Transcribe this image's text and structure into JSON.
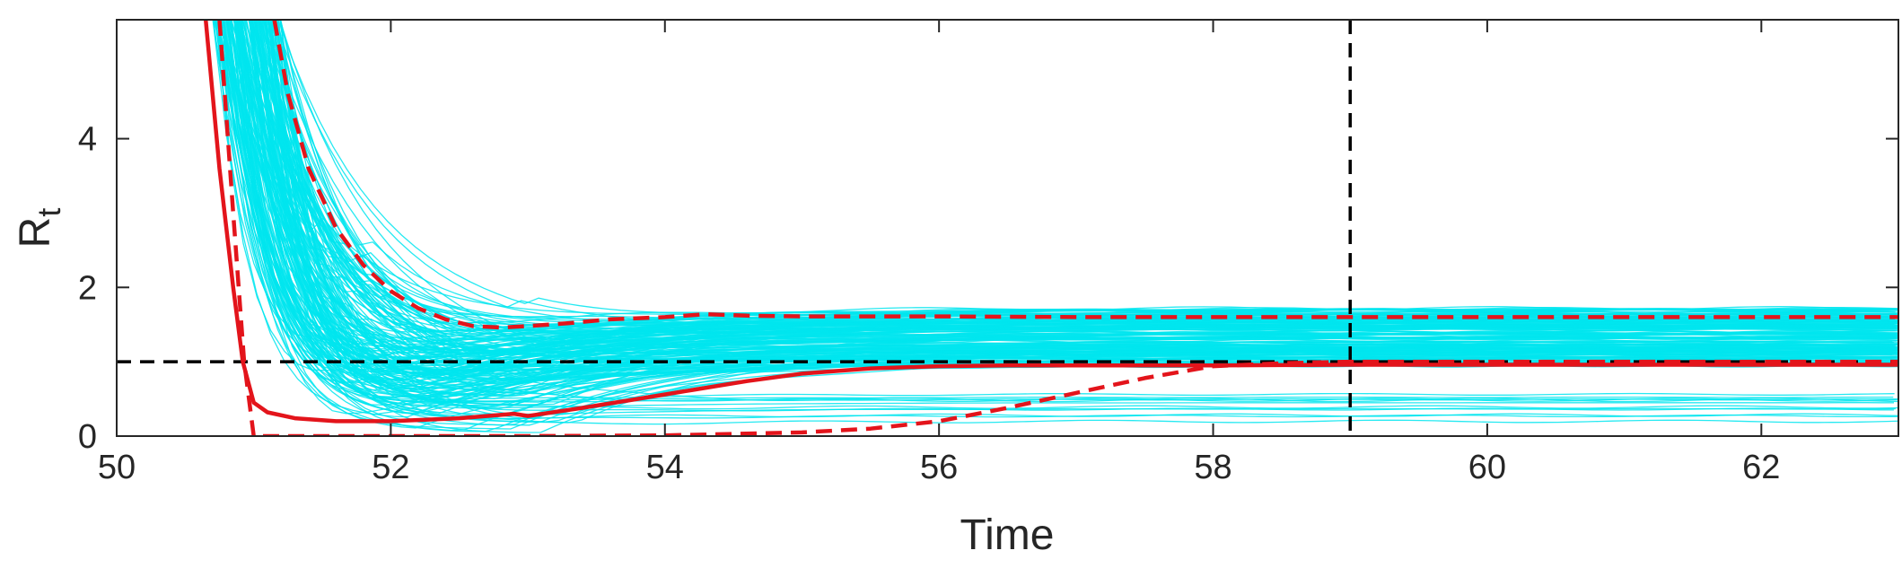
{
  "chart_data": {
    "type": "line",
    "title": "",
    "xlabel": "Time",
    "ylabel_main": "R",
    "ylabel_sub": "t",
    "xlim": [
      50,
      63
    ],
    "ylim": [
      0,
      5.6
    ],
    "xticks": [
      50,
      52,
      54,
      56,
      58,
      60,
      62
    ],
    "yticks": [
      0,
      2,
      4
    ],
    "grid": false,
    "legend": "none",
    "reference_lines": [
      {
        "orientation": "horizontal",
        "value": 1,
        "style": "dashed",
        "color": "#000000"
      },
      {
        "orientation": "vertical",
        "value": 59,
        "style": "dashed",
        "color": "#000000"
      }
    ],
    "ensemble": {
      "count": 200,
      "color": "#00e5ee",
      "description_values_only": true,
      "start_x": 50.7,
      "plateau_range": [
        0.95,
        1.72
      ]
    },
    "series": [
      {
        "role": "median",
        "style": "solid",
        "color": "#e3141b",
        "x": [
          50.65,
          50.75,
          50.85,
          50.92,
          51.0,
          51.1,
          51.3,
          51.6,
          52.0,
          52.5,
          52.9,
          53.0,
          53.4,
          53.8,
          54.2,
          54.6,
          55.0,
          55.5,
          56.0,
          56.5,
          57.0,
          57.5,
          58.0,
          59.0,
          60.0,
          61.0,
          62.0,
          63.0
        ],
        "y": [
          5.6,
          3.6,
          2.0,
          1.0,
          0.45,
          0.32,
          0.24,
          0.2,
          0.2,
          0.24,
          0.3,
          0.27,
          0.38,
          0.5,
          0.62,
          0.74,
          0.84,
          0.91,
          0.94,
          0.95,
          0.95,
          0.95,
          0.95,
          0.96,
          0.96,
          0.96,
          0.96,
          0.96
        ]
      },
      {
        "role": "upper-bound",
        "style": "dashed",
        "color": "#e3141b",
        "x": [
          51.15,
          51.25,
          51.4,
          51.6,
          51.8,
          52.0,
          52.2,
          52.4,
          52.6,
          52.8,
          53.0,
          53.3,
          53.6,
          54.0,
          54.3,
          54.6,
          55.0,
          56.0,
          57.0,
          58.0,
          59.0,
          60.0,
          61.0,
          62.0,
          63.0
        ],
        "y": [
          5.6,
          4.6,
          3.6,
          2.8,
          2.3,
          1.95,
          1.72,
          1.57,
          1.48,
          1.46,
          1.48,
          1.52,
          1.57,
          1.6,
          1.64,
          1.62,
          1.61,
          1.61,
          1.6,
          1.6,
          1.6,
          1.6,
          1.6,
          1.6,
          1.6
        ]
      },
      {
        "role": "lower-bound",
        "style": "dashed",
        "color": "#e3141b",
        "x": [
          50.75,
          50.85,
          50.93,
          51.0,
          51.2,
          52.0,
          53.0,
          54.0,
          55.0,
          55.5,
          56.0,
          56.5,
          57.0,
          57.5,
          58.0,
          58.5,
          59.0,
          60.0,
          61.0,
          62.0,
          63.0
        ],
        "y": [
          5.6,
          3.0,
          1.0,
          0.0,
          0.0,
          0.0,
          0.0,
          0.01,
          0.05,
          0.1,
          0.2,
          0.38,
          0.58,
          0.78,
          0.94,
          0.98,
          1.0,
          1.0,
          1.0,
          1.0,
          1.0
        ]
      }
    ]
  }
}
